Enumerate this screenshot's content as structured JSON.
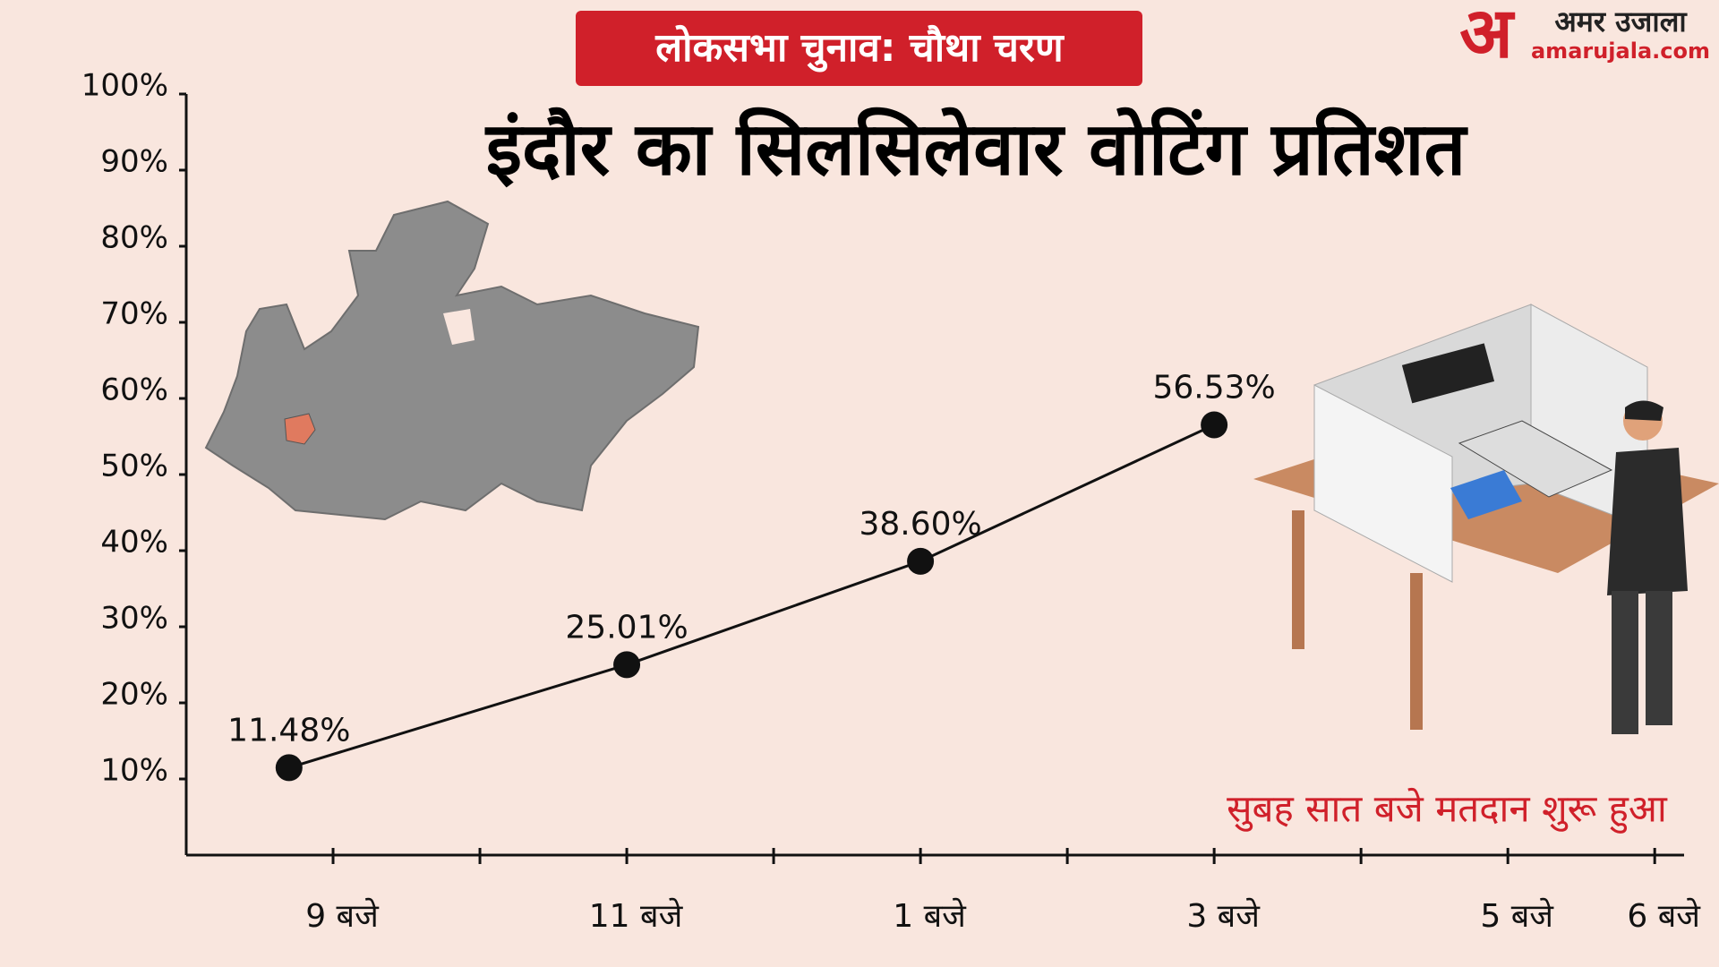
{
  "chart_data": {
    "type": "line",
    "title": "इंदौर का सिलसिलेवार वोटिंग प्रतिशत",
    "subtitle": "लोकसभा चुनाव: चौथा चरण",
    "annotation": "सुबह सात बजे मतदान शुरू हुआ",
    "x": [
      0.7,
      3,
      5,
      7
    ],
    "series": [
      {
        "color": "#111111",
        "values": [
          11.48,
          25.01,
          38.6,
          56.53
        ],
        "value_labels": [
          "11.48%",
          "25.01%",
          "38.60%",
          "56.53%"
        ]
      }
    ],
    "xlim": [
      0,
      10.2
    ],
    "xticks": [
      {
        "value": 1,
        "label": "9 बजे"
      },
      {
        "value": 3,
        "label": "11 बजे"
      },
      {
        "value": 5,
        "label": "1 बजे"
      },
      {
        "value": 7,
        "label": "3 बजे"
      },
      {
        "value": 9,
        "label": "5 बजे"
      },
      {
        "value": 10,
        "label": "6 बजे"
      }
    ],
    "xminorticks": [
      2,
      4,
      6,
      8
    ],
    "ylim": [
      0,
      100
    ],
    "yticks": [
      {
        "value": 10,
        "label": "10%"
      },
      {
        "value": 20,
        "label": "20%"
      },
      {
        "value": 30,
        "label": "30%"
      },
      {
        "value": 40,
        "label": "40%"
      },
      {
        "value": 50,
        "label": "50%"
      },
      {
        "value": 60,
        "label": "60%"
      },
      {
        "value": 70,
        "label": "70%"
      },
      {
        "value": 80,
        "label": "80%"
      },
      {
        "value": 90,
        "label": "90%"
      },
      {
        "value": 100,
        "label": "100%"
      }
    ]
  },
  "logo": {
    "mark": "अ",
    "name": "अमर उजाला",
    "site": "amarujala.com"
  }
}
